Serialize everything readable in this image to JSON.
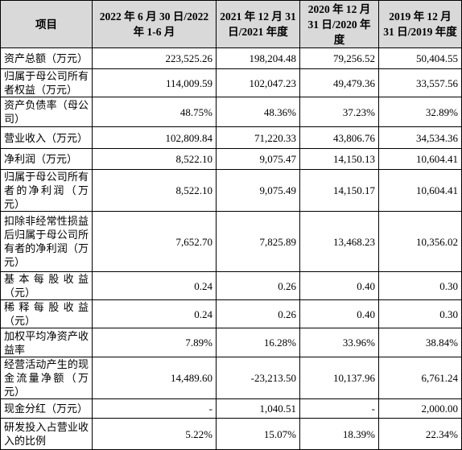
{
  "table": {
    "header": [
      "项目",
      "2022 年 6 月 30 日/2022 年 1-6 月",
      "2021 年 12 月 31 日/2021 年度",
      "2020 年 12 月 31 日/2020 年度",
      "2019 年 12 月 31 日/2019 年度"
    ],
    "rows": [
      [
        "资产总额（万元）",
        "223,525.26",
        "198,204.48",
        "79,256.52",
        "50,404.55"
      ],
      [
        "归属于母公司所有者权益（万元）",
        "114,009.59",
        "102,047.23",
        "49,479.36",
        "33,557.56"
      ],
      [
        "资产负债率（母公司）",
        "48.75%",
        "48.36%",
        "37.23%",
        "32.89%"
      ],
      [
        "营业收入（万元）",
        "102,809.84",
        "71,220.33",
        "43,806.76",
        "34,534.36"
      ],
      [
        "净利润（万元）",
        "8,522.10",
        "9,075.47",
        "14,150.13",
        "10,604.41"
      ],
      [
        "归属于母公司所有者的净利润（万元）",
        "8,522.10",
        "9,075.49",
        "14,150.17",
        "10,604.41"
      ],
      [
        "扣除非经常性损益后归属于母公司所有者的净利润（万元）",
        "7,652.70",
        "7,825.89",
        "13,468.23",
        "10,356.02"
      ],
      [
        "基本每股收益（元）",
        "0.24",
        "0.26",
        "0.40",
        "0.30"
      ],
      [
        "稀释每股收益（元）",
        "0.24",
        "0.26",
        "0.40",
        "0.30"
      ],
      [
        "加权平均净资产收益率",
        "7.89%",
        "16.28%",
        "33.96%",
        "38.84%"
      ],
      [
        "经营活动产生的现金流量净额（万元）",
        "14,489.60",
        "-23,213.50",
        "10,137.96",
        "6,761.24"
      ],
      [
        "现金分红（万元）",
        "-",
        "1,040.51",
        "-",
        "2,000.00"
      ],
      [
        "研发投入占营业收入的比例",
        "5.22%",
        "15.07%",
        "18.39%",
        "22.34%"
      ]
    ]
  }
}
